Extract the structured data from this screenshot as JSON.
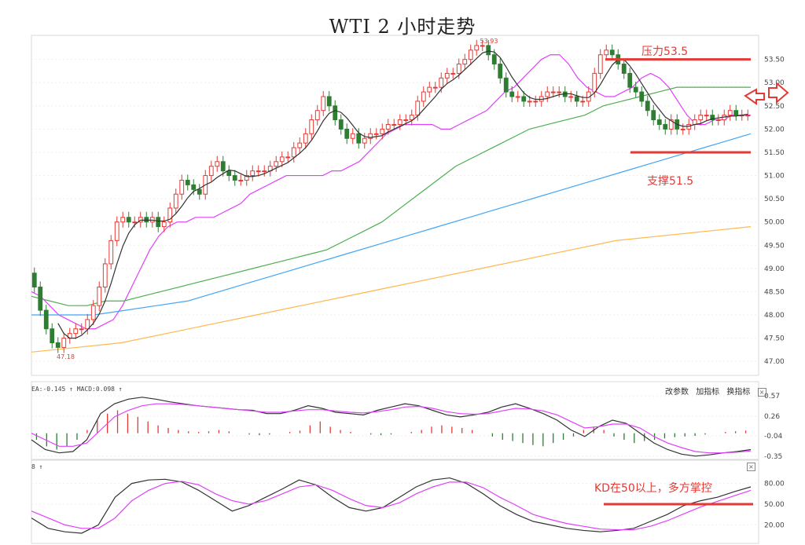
{
  "title": "WTI 2 小时走势",
  "annotations": {
    "resistance": "压力53.5",
    "support": "支撑51.5",
    "kd_note": "KD在50以上，多方掌控"
  },
  "price_marks": {
    "high": "53.93",
    "low": "47.18"
  },
  "indicator_labels": {
    "macd": "EA:-0.145 ↑ MACD:0.098 ↑",
    "kd": "8 ↑"
  },
  "panel_tools": [
    "改参数",
    "加指标",
    "换指标"
  ],
  "close_symbol": "×",
  "colors": {
    "up": "#e53935",
    "down": "#2e7d32",
    "ma5": "#333333",
    "ma10": "#e040fb",
    "ma20": "#bdbdbd",
    "ma30": "#a1665e",
    "ma60": "#4caf50",
    "ma120": "#42a5f5",
    "ma250": "#ffb74d",
    "annot": "#e53935"
  },
  "chart_data": [
    {
      "type": "candlestick",
      "title": "WTI 2 小时走势",
      "ylim": [
        46.8,
        53.9
      ],
      "y_ticks": [
        "53.50",
        "53.00",
        "52.50",
        "52.00",
        "51.50",
        "51.00",
        "50.50",
        "50.00",
        "49.50",
        "49.00",
        "48.50",
        "48.00",
        "47.50",
        "47.00"
      ],
      "levels": [
        {
          "name": "压力53.5",
          "value": 53.5
        },
        {
          "name": "支撑51.5",
          "value": 51.5
        }
      ],
      "close": [
        48.6,
        48.1,
        47.7,
        47.4,
        47.3,
        47.5,
        47.6,
        47.7,
        47.7,
        47.9,
        48.2,
        48.6,
        49.1,
        49.6,
        50.0,
        50.1,
        50.0,
        50.0,
        50.1,
        50.0,
        50.1,
        49.9,
        50.0,
        50.3,
        50.6,
        50.9,
        50.8,
        50.7,
        50.6,
        51.0,
        51.2,
        51.3,
        51.1,
        51.0,
        50.9,
        50.9,
        51.0,
        51.1,
        51.1,
        51.1,
        51.2,
        51.3,
        51.4,
        51.4,
        51.6,
        51.7,
        51.9,
        52.2,
        52.4,
        52.7,
        52.5,
        52.2,
        52.0,
        51.8,
        51.9,
        51.7,
        51.8,
        51.9,
        51.9,
        52.0,
        52.1,
        52.1,
        52.2,
        52.2,
        52.3,
        52.6,
        52.8,
        52.9,
        52.9,
        53.1,
        53.2,
        53.2,
        53.4,
        53.5,
        53.7,
        53.8,
        53.8,
        53.6,
        53.4,
        53.1,
        52.8,
        52.7,
        52.7,
        52.6,
        52.6,
        52.6,
        52.7,
        52.8,
        52.8,
        52.8,
        52.7,
        52.7,
        52.6,
        52.6,
        52.8,
        53.2,
        53.6,
        53.7,
        53.6,
        53.4,
        53.2,
        52.9,
        52.8,
        52.6,
        52.4,
        52.2,
        52.1,
        52.0,
        52.2,
        52.0,
        52.0,
        52.1,
        52.2,
        52.3,
        52.3,
        52.2,
        52.2,
        52.3,
        52.4,
        52.3,
        52.3,
        52.3
      ],
      "series_overlays": [
        {
          "name": "MA10",
          "values": [
            48.5,
            48.4,
            48.2,
            48.0,
            47.9,
            47.8,
            47.7,
            47.7,
            47.8,
            47.9,
            48.2,
            48.6,
            49.0,
            49.4,
            49.7,
            49.9,
            50.0,
            50.0,
            50.1,
            50.1,
            50.1,
            50.2,
            50.3,
            50.4,
            50.6,
            50.7,
            50.8,
            50.9,
            51.0,
            51.0,
            51.0,
            51.0,
            51.0,
            51.1,
            51.1,
            51.2,
            51.3,
            51.5,
            51.7,
            51.9,
            52.0,
            52.1,
            52.1,
            52.1,
            52.1,
            52.0,
            52.0,
            52.1,
            52.2,
            52.3,
            52.4,
            52.6,
            52.8,
            52.9,
            53.1,
            53.3,
            53.5,
            53.6,
            53.6,
            53.4,
            53.1,
            52.9,
            52.8,
            52.7,
            52.7,
            52.8,
            52.9,
            53.1,
            53.2,
            53.1,
            52.9,
            52.6,
            52.3,
            52.1,
            52.1,
            52.2,
            52.2,
            52.3,
            52.3,
            52.3
          ]
        },
        {
          "name": "MA60",
          "values": [
            48.4,
            48.3,
            48.2,
            48.2,
            48.3,
            48.3,
            48.4,
            48.5,
            48.6,
            48.7,
            48.8,
            48.9,
            49.0,
            49.1,
            49.2,
            49.3,
            49.4,
            49.6,
            49.8,
            50.0,
            50.3,
            50.6,
            50.9,
            51.2,
            51.4,
            51.6,
            51.8,
            52.0,
            52.1,
            52.2,
            52.3,
            52.5,
            52.6,
            52.7,
            52.8,
            52.9,
            52.9,
            52.9,
            52.9,
            52.9
          ]
        },
        {
          "name": "MA120",
          "values": [
            48.0,
            48.0,
            48.0,
            48.1,
            48.2,
            48.3,
            48.5,
            48.7,
            48.9,
            49.1,
            49.3,
            49.5,
            49.7,
            49.9,
            50.1,
            50.3,
            50.5,
            50.7,
            50.9,
            51.1,
            51.3,
            51.5,
            51.7,
            51.9
          ]
        },
        {
          "name": "MA250",
          "values": [
            47.2,
            47.3,
            47.4,
            47.6,
            47.8,
            48.0,
            48.2,
            48.4,
            48.6,
            48.8,
            49.0,
            49.2,
            49.4,
            49.6,
            49.7,
            49.8,
            49.9
          ]
        }
      ]
    },
    {
      "type": "bar",
      "name": "MACD",
      "ylim": [
        -0.4,
        0.62
      ],
      "y_ticks": [
        "0.57",
        "0.26",
        "-0.04",
        "-0.35"
      ],
      "values": [
        -0.1,
        -0.2,
        -0.25,
        -0.2,
        -0.1,
        0.05,
        0.2,
        0.3,
        0.35,
        0.3,
        0.25,
        0.18,
        0.12,
        0.08,
        0.05,
        0.03,
        0.02,
        0.03,
        0.05,
        0.03,
        0.0,
        -0.02,
        -0.03,
        -0.02,
        0.0,
        0.02,
        0.04,
        0.12,
        0.18,
        0.1,
        0.05,
        0.02,
        0.0,
        -0.02,
        -0.03,
        -0.02,
        0.0,
        0.02,
        0.05,
        0.1,
        0.12,
        0.1,
        0.08,
        0.05,
        0.0,
        -0.05,
        -0.1,
        -0.12,
        -0.15,
        -0.18,
        -0.2,
        -0.15,
        -0.1,
        -0.05,
        0.05,
        0.1,
        0.05,
        -0.05,
        -0.1,
        -0.15,
        -0.12,
        -0.1,
        -0.08,
        -0.06,
        -0.05,
        -0.04,
        -0.02,
        0.0,
        0.02,
        0.03,
        0.04
      ],
      "dif": [
        -0.1,
        -0.25,
        -0.3,
        -0.28,
        -0.1,
        0.3,
        0.45,
        0.52,
        0.55,
        0.52,
        0.48,
        0.45,
        0.42,
        0.4,
        0.38,
        0.36,
        0.35,
        0.3,
        0.3,
        0.35,
        0.42,
        0.38,
        0.32,
        0.3,
        0.28,
        0.35,
        0.4,
        0.45,
        0.42,
        0.35,
        0.28,
        0.25,
        0.28,
        0.32,
        0.4,
        0.45,
        0.38,
        0.3,
        0.2,
        0.05,
        -0.05,
        0.1,
        0.2,
        0.15,
        0.0,
        -0.15,
        -0.25,
        -0.32,
        -0.35,
        -0.33,
        -0.3,
        -0.28,
        -0.25
      ],
      "dea": [
        0.0,
        -0.1,
        -0.2,
        -0.2,
        -0.15,
        0.05,
        0.25,
        0.35,
        0.42,
        0.45,
        0.45,
        0.44,
        0.42,
        0.4,
        0.38,
        0.36,
        0.34,
        0.32,
        0.32,
        0.34,
        0.36,
        0.36,
        0.34,
        0.32,
        0.31,
        0.33,
        0.36,
        0.4,
        0.41,
        0.38,
        0.33,
        0.3,
        0.29,
        0.3,
        0.34,
        0.38,
        0.37,
        0.34,
        0.28,
        0.18,
        0.08,
        0.1,
        0.14,
        0.14,
        0.08,
        -0.05,
        -0.15,
        -0.22,
        -0.28,
        -0.3,
        -0.3,
        -0.29,
        -0.27
      ]
    },
    {
      "type": "line",
      "name": "KD",
      "ylim": [
        0,
        100
      ],
      "y_ticks": [
        "80.00",
        "50.00",
        "20.00"
      ],
      "k": [
        30,
        15,
        10,
        8,
        20,
        60,
        80,
        85,
        86,
        82,
        70,
        55,
        40,
        48,
        60,
        72,
        85,
        78,
        60,
        45,
        40,
        45,
        60,
        75,
        85,
        88,
        80,
        65,
        48,
        35,
        25,
        20,
        15,
        12,
        10,
        12,
        15,
        25,
        35,
        48,
        55,
        60,
        68,
        75
      ],
      "d": [
        40,
        30,
        20,
        15,
        15,
        30,
        55,
        70,
        80,
        83,
        78,
        65,
        55,
        50,
        55,
        65,
        75,
        78,
        70,
        58,
        48,
        45,
        52,
        65,
        75,
        82,
        82,
        74,
        60,
        48,
        35,
        28,
        22,
        18,
        14,
        13,
        13,
        18,
        26,
        36,
        46,
        54,
        62,
        70
      ]
    }
  ]
}
